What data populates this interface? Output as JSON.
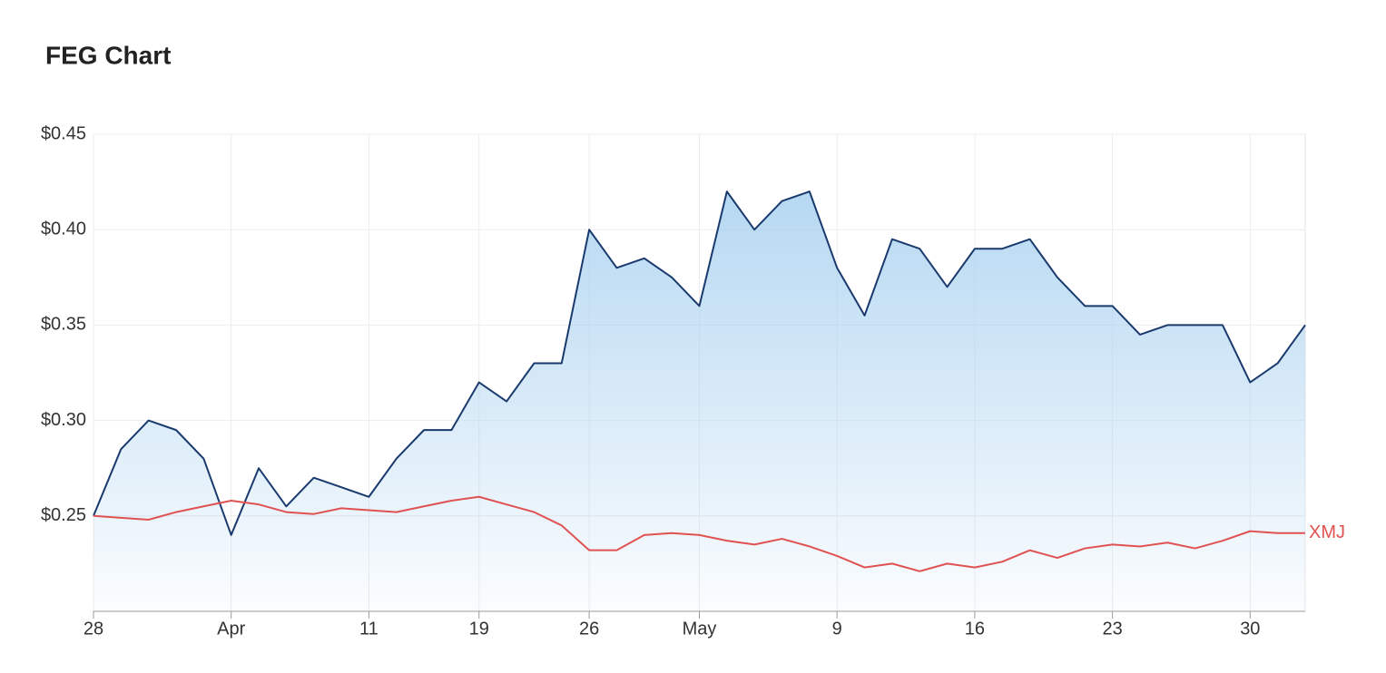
{
  "chart_data": {
    "type": "area",
    "title": "FEG Chart",
    "categories": [
      "28",
      null,
      null,
      null,
      null,
      "Apr",
      null,
      null,
      null,
      null,
      "11",
      null,
      null,
      null,
      "19",
      null,
      null,
      null,
      "26",
      null,
      null,
      null,
      "May",
      null,
      null,
      null,
      null,
      "9",
      null,
      null,
      null,
      null,
      "16",
      null,
      null,
      null,
      null,
      "23",
      null,
      null,
      null,
      null,
      "30",
      null,
      null
    ],
    "series": [
      {
        "color": "#1a3a6e",
        "area": true,
        "values": [
          0.25,
          0.285,
          0.3,
          0.295,
          0.28,
          0.24,
          0.275,
          0.255,
          0.27,
          0.265,
          0.26,
          0.28,
          0.295,
          0.295,
          0.32,
          0.31,
          0.33,
          0.33,
          0.4,
          0.38,
          0.385,
          0.375,
          0.36,
          0.42,
          0.4,
          0.415,
          0.42,
          0.38,
          0.355,
          0.395,
          0.39,
          0.37,
          0.39,
          0.39,
          0.395,
          0.375,
          0.36,
          0.36,
          0.345,
          0.35,
          0.35,
          0.35,
          0.32,
          0.33,
          0.35
        ]
      },
      {
        "name": "XMJ",
        "color": "#e05252",
        "values": [
          0.25,
          0.249,
          0.248,
          0.252,
          0.255,
          0.258,
          0.256,
          0.252,
          0.251,
          0.254,
          0.253,
          0.252,
          0.255,
          0.258,
          0.26,
          0.256,
          0.252,
          0.245,
          0.232,
          0.232,
          0.24,
          0.241,
          0.24,
          0.237,
          0.235,
          0.238,
          0.234,
          0.229,
          0.223,
          0.225,
          0.221,
          0.225,
          0.223,
          0.226,
          0.232,
          0.228,
          0.233,
          0.235,
          0.234,
          0.236,
          0.233,
          0.237,
          0.242,
          0.241,
          0.241
        ]
      }
    ],
    "ylim": [
      0.2,
      0.45
    ],
    "yticks": [
      {
        "value": 0.25,
        "label": "$0.25"
      },
      {
        "value": 0.3,
        "label": "$0.30"
      },
      {
        "value": 0.35,
        "label": "$0.35"
      },
      {
        "value": 0.4,
        "label": "$0.40"
      },
      {
        "value": 0.45,
        "label": "$0.45"
      }
    ],
    "grid": true
  }
}
